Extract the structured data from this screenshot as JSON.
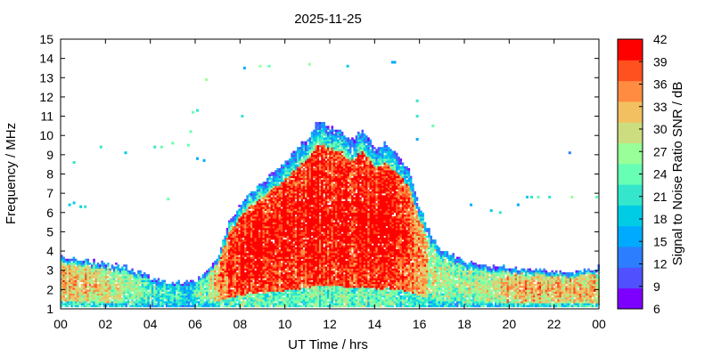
{
  "chart_data": {
    "type": "heatmap",
    "title": "2025-11-25",
    "xlabel": "UT Time / hrs",
    "ylabel": "Frequency / MHz",
    "xlim": [
      0,
      24
    ],
    "ylim": [
      1,
      15
    ],
    "x_ticks": [
      "00",
      "02",
      "04",
      "06",
      "08",
      "10",
      "12",
      "14",
      "16",
      "18",
      "20",
      "22",
      "00"
    ],
    "y_ticks": [
      "1",
      "2",
      "3",
      "4",
      "5",
      "6",
      "7",
      "8",
      "9",
      "10",
      "11",
      "12",
      "13",
      "14",
      "15"
    ],
    "colorbar": {
      "label": "Signal to Noise Ratio SNR / dB",
      "ticks": [
        "6",
        "9",
        "12",
        "15",
        "18",
        "21",
        "24",
        "27",
        "30",
        "33",
        "36",
        "39",
        "42"
      ],
      "min": 6,
      "max": 42,
      "colors": [
        "#7d00ff",
        "#5050ff",
        "#2d7dff",
        "#00aaff",
        "#00cce6",
        "#33e6cc",
        "#66ffb3",
        "#99ff99",
        "#ccdd80",
        "#f2c060",
        "#ff8c40",
        "#ff5020",
        "#ff0000"
      ]
    },
    "envelope": {
      "hours": [
        0,
        1,
        2,
        3,
        4,
        5,
        5.5,
        6,
        6.5,
        7,
        7.5,
        8,
        9,
        10,
        10.5,
        11,
        11.5,
        12,
        12.5,
        13,
        13.5,
        14,
        14.5,
        15,
        15.5,
        16,
        16.5,
        17,
        18,
        19,
        20,
        21,
        22,
        23,
        24
      ],
      "top_mhz": [
        3.7,
        3.5,
        3.3,
        3.1,
        2.6,
        2.3,
        2.3,
        2.4,
        2.9,
        3.6,
        5.4,
        6.4,
        7.6,
        8.5,
        9.2,
        9.8,
        10.7,
        10.4,
        10.2,
        9.7,
        10.3,
        9.3,
        9.5,
        9.0,
        8.2,
        6.3,
        4.8,
        4.0,
        3.4,
        3.2,
        3.1,
        3.0,
        2.9,
        2.9,
        3.1
      ],
      "peak_snr_db": [
        33,
        33,
        32,
        28,
        24,
        21,
        20,
        22,
        27,
        34,
        40,
        42,
        42,
        42,
        42,
        42,
        42,
        42,
        42,
        42,
        42,
        42,
        42,
        42,
        40,
        36,
        30,
        27,
        28,
        30,
        33,
        34,
        34,
        33,
        33
      ]
    },
    "sporadic_points": [
      [
        0.4,
        6.4
      ],
      [
        0.6,
        6.5
      ],
      [
        0.9,
        6.3
      ],
      [
        1.1,
        6.3
      ],
      [
        0.6,
        8.6
      ],
      [
        1.8,
        9.4
      ],
      [
        2.9,
        9.1
      ],
      [
        4.2,
        9.4
      ],
      [
        4.5,
        9.4
      ],
      [
        5.0,
        9.6
      ],
      [
        5.7,
        9.5
      ],
      [
        5.8,
        10.2
      ],
      [
        5.9,
        11.2
      ],
      [
        6.1,
        11.3
      ],
      [
        6.5,
        12.9
      ],
      [
        6.1,
        8.8
      ],
      [
        6.4,
        8.7
      ],
      [
        4.8,
        6.7
      ],
      [
        8.1,
        11.0
      ],
      [
        8.2,
        13.5
      ],
      [
        8.9,
        13.6
      ],
      [
        9.3,
        13.6
      ],
      [
        11.1,
        13.7
      ],
      [
        12.8,
        13.6
      ],
      [
        14.8,
        13.8
      ],
      [
        14.9,
        13.8
      ],
      [
        15.9,
        11.8
      ],
      [
        15.9,
        11.0
      ],
      [
        16.6,
        10.5
      ],
      [
        19.2,
        6.1
      ],
      [
        19.6,
        6.0
      ],
      [
        20.4,
        6.4
      ],
      [
        20.8,
        6.8
      ],
      [
        21.0,
        6.8
      ],
      [
        21.3,
        6.8
      ],
      [
        21.8,
        6.8
      ],
      [
        22.8,
        6.8
      ],
      [
        23.9,
        6.8
      ],
      [
        22.7,
        9.1
      ],
      [
        18.3,
        6.4
      ],
      [
        15.9,
        9.8
      ]
    ]
  }
}
